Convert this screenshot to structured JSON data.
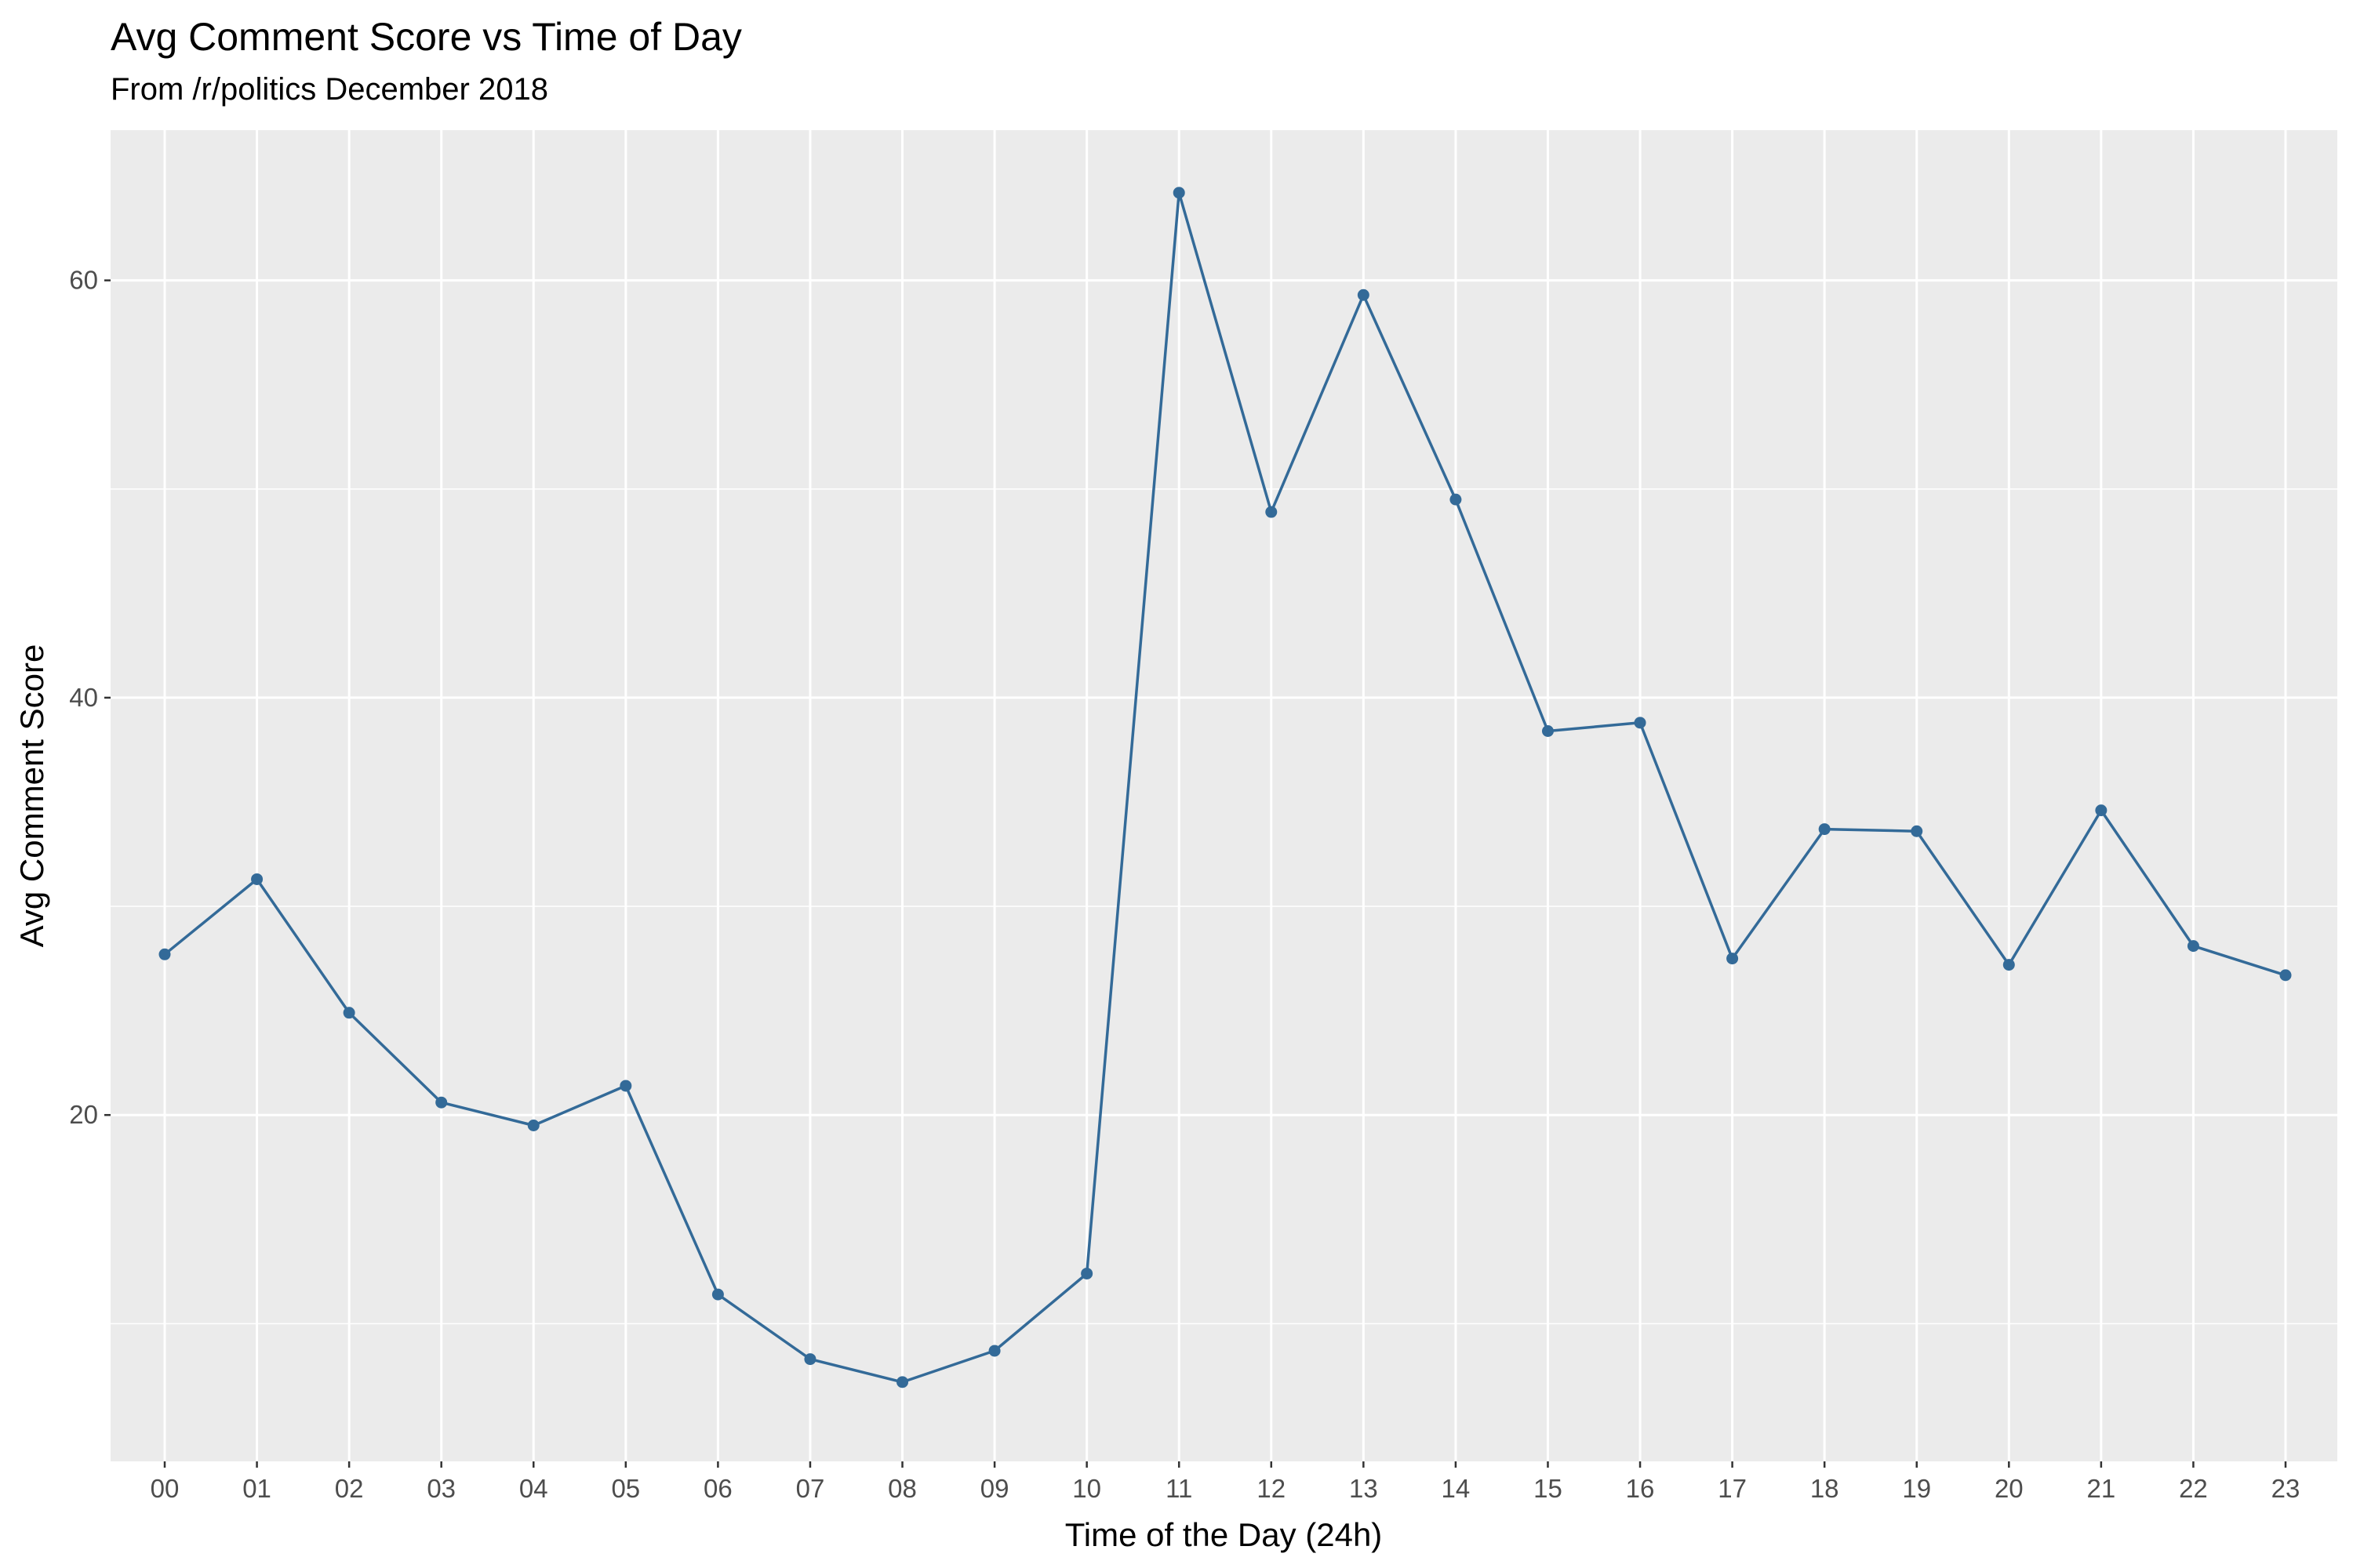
{
  "chart_data": {
    "type": "line",
    "title": "Avg Comment Score vs Time of Day",
    "subtitle": "From /r/politics December 2018",
    "xlabel": "Time of the Day (24h)",
    "ylabel": "Avg Comment Score",
    "categories": [
      "00",
      "01",
      "02",
      "03",
      "04",
      "05",
      "06",
      "07",
      "08",
      "09",
      "10",
      "11",
      "12",
      "13",
      "14",
      "15",
      "16",
      "17",
      "18",
      "19",
      "20",
      "21",
      "22",
      "23"
    ],
    "series": [
      {
        "values": [
          27.7,
          31.3,
          24.9,
          20.6,
          19.5,
          21.4,
          11.4,
          8.3,
          7.2,
          8.7,
          12.4,
          64.2,
          48.9,
          59.3,
          49.5,
          38.4,
          38.8,
          27.5,
          33.7,
          33.6,
          27.2,
          34.6,
          28.1,
          26.7
        ]
      }
    ],
    "ylim": [
      3.4,
      67.2
    ],
    "yticks": [
      20,
      40,
      60
    ],
    "grid": true,
    "legend": "none",
    "colors": {
      "line": "#336a98",
      "panel_background": "#ebebeb",
      "grid": "#ffffff",
      "tick_label": "#4d4d4d",
      "tick_mark": "#333333"
    }
  }
}
